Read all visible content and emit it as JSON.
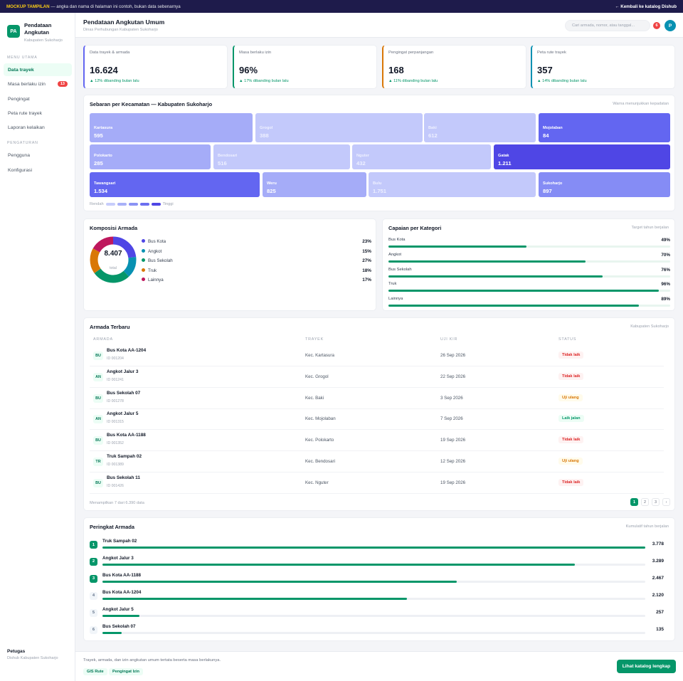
{
  "topbar": {
    "mockup_label": "MOCKUP TAMPILAN",
    "notice": "— angka dan nama di halaman ini contoh, bukan data sebenarnya",
    "back_link": "← Kembali ke katalog Dishub"
  },
  "sidebar": {
    "logo": "PA",
    "title": "Pendataan Angkutan",
    "subtitle": "Kabupaten Sukoharjo",
    "main_section": "MENU UTAMA",
    "main_items": [
      {
        "label": "Data trayek",
        "badge": ""
      },
      {
        "label": "Masa berlaku izin",
        "badge": "13"
      },
      {
        "label": "Pengingat",
        "badge": ""
      },
      {
        "label": "Peta rute trayek",
        "badge": ""
      },
      {
        "label": "Laporan kelaikan",
        "badge": ""
      }
    ],
    "settings_section": "PENGATURAN",
    "settings_items": [
      {
        "label": "Pengguna"
      },
      {
        "label": "Konfigurasi"
      }
    ],
    "officer_name": "Petugas",
    "officer_org": "Dishub Kabupaten Sukoharjo"
  },
  "header": {
    "title": "Pendataan Angkutan Umum",
    "subtitle": "Dinas Perhubungan Kabupaten Sukoharjo",
    "search_placeholder": "Cari armada, nomor, atau tanggal...",
    "notif_count": "6",
    "avatar": "P"
  },
  "kpis": [
    {
      "label": "Data trayek & armada",
      "value": "16.624",
      "delta": "▲ 12% dibanding bulan lalu",
      "color": "#6366f1"
    },
    {
      "label": "Masa berlaku izin",
      "value": "96%",
      "delta": "▲ 17% dibanding bulan lalu",
      "color": "#059669"
    },
    {
      "label": "Pengingat perpanjangan",
      "value": "168",
      "delta": "▲ 11% dibanding bulan lalu",
      "color": "#d97706"
    },
    {
      "label": "Peta rute trayek",
      "value": "357",
      "delta": "▲ 14% dibanding bulan lalu",
      "color": "#0891b2"
    }
  ],
  "heatmap": {
    "title": "Sebaran per Kecamatan — Kabupaten Sukoharjo",
    "note": "Warna menunjukkan kepadatan",
    "legend_low": "Rendah",
    "legend_high": "Tinggi",
    "legend_colors": [
      "#c7cdfb",
      "#a9b1f8",
      "#8b93f4",
      "#6c6ff0",
      "#4f46e5"
    ],
    "tiles": [
      {
        "name": "Kartasura",
        "value": "595",
        "color": "#a5acf8"
      },
      {
        "name": "Grogol",
        "value": "388",
        "color": "#c3c9fb"
      },
      {
        "name": "Baki",
        "value": "612",
        "color": "#c3c9fb"
      },
      {
        "name": "Mojolaban",
        "value": "84",
        "color": "#6366f1"
      },
      {
        "name": "Polokarto",
        "value": "285",
        "color": "#a5acf8"
      },
      {
        "name": "Bendosari",
        "value": "516",
        "color": "#c3c9fb"
      },
      {
        "name": "Nguter",
        "value": "432",
        "color": "#c3c9fb"
      },
      {
        "name": "Gatak",
        "value": "1.211",
        "color": "#4f46e5"
      },
      {
        "name": "Tawangsari",
        "value": "1.534",
        "color": "#6366f1"
      },
      {
        "name": "Weru",
        "value": "825",
        "color": "#a5acf8"
      },
      {
        "name": "Bulu",
        "value": "1.751",
        "color": "#c3c9fb"
      },
      {
        "name": "Sukoharjo",
        "value": "897",
        "color": "#858cf5"
      }
    ]
  },
  "composition": {
    "title": "Komposisi Armada",
    "total": "8.407",
    "total_label": "total",
    "items": [
      {
        "label": "Bus Kota",
        "pct": "23%",
        "value": 23,
        "color": "#4f46e5"
      },
      {
        "label": "Angkot",
        "pct": "15%",
        "value": 15,
        "color": "#0891b2"
      },
      {
        "label": "Bus Sekolah",
        "pct": "27%",
        "value": 27,
        "color": "#059669"
      },
      {
        "label": "Truk",
        "pct": "18%",
        "value": 18,
        "color": "#d97706"
      },
      {
        "label": "Lainnya",
        "pct": "17%",
        "value": 17,
        "color": "#be185d"
      }
    ]
  },
  "achievement": {
    "title": "Capaian per Kategori",
    "note": "Target tahun berjalan",
    "items": [
      {
        "label": "Bus Kota",
        "pct": "49%",
        "value": 49
      },
      {
        "label": "Angkot",
        "pct": "70%",
        "value": 70
      },
      {
        "label": "Bus Sekolah",
        "pct": "76%",
        "value": 76
      },
      {
        "label": "Truk",
        "pct": "96%",
        "value": 96
      },
      {
        "label": "Lainnya",
        "pct": "89%",
        "value": 89
      }
    ]
  },
  "table": {
    "title": "Armada Terbaru",
    "note": "Kabupaten Sukoharjo",
    "columns": [
      "ARMADA",
      "TRAYEK",
      "UJI KIR",
      "STATUS"
    ],
    "rows": [
      {
        "abbr": "BU",
        "name": "Bus Kota AA-1204",
        "id": "ID 001204",
        "route": "Kec. Kartasura",
        "date": "26 Sep 2026",
        "status": "Tidak laik",
        "tone": "red"
      },
      {
        "abbr": "AN",
        "name": "Angkot Jalur 3",
        "id": "ID 001241",
        "route": "Kec. Grogol",
        "date": "22 Sep 2026",
        "status": "Tidak laik",
        "tone": "red"
      },
      {
        "abbr": "BU",
        "name": "Bus Sekolah 07",
        "id": "ID 001278",
        "route": "Kec. Baki",
        "date": "3 Sep 2026",
        "status": "Uji ulang",
        "tone": "yel"
      },
      {
        "abbr": "AN",
        "name": "Angkot Jalur 5",
        "id": "ID 001315",
        "route": "Kec. Mojolaban",
        "date": "7 Sep 2026",
        "status": "Laik jalan",
        "tone": "grn"
      },
      {
        "abbr": "BU",
        "name": "Bus Kota AA-1188",
        "id": "ID 001352",
        "route": "Kec. Polokarto",
        "date": "19 Sep 2026",
        "status": "Tidak laik",
        "tone": "red"
      },
      {
        "abbr": "TR",
        "name": "Truk Sampah 02",
        "id": "ID 001389",
        "route": "Kec. Bendosari",
        "date": "12 Sep 2026",
        "status": "Uji ulang",
        "tone": "yel"
      },
      {
        "abbr": "BU",
        "name": "Bus Sekolah 11",
        "id": "ID 001426",
        "route": "Kec. Nguter",
        "date": "19 Sep 2026",
        "status": "Tidak laik",
        "tone": "red"
      }
    ],
    "footer": "Menampilkan 7 dari 6.390 data",
    "pages": [
      "1",
      "2",
      "3",
      "›"
    ]
  },
  "ranking": {
    "title": "Peringkat Armada",
    "note": "Kumulatif tahun berjalan",
    "max": 3778,
    "items": [
      {
        "rank": "1",
        "name": "Truk Sampah 02",
        "value": 3778,
        "display": "3.778"
      },
      {
        "rank": "2",
        "name": "Angkot Jalur 3",
        "value": 3289,
        "display": "3.289"
      },
      {
        "rank": "3",
        "name": "Bus Kota AA-1188",
        "value": 2467,
        "display": "2.467"
      },
      {
        "rank": "4",
        "name": "Bus Kota AA-1204",
        "value": 2120,
        "display": "2.120"
      },
      {
        "rank": "5",
        "name": "Angkot Jalur 5",
        "value": 257,
        "display": "257"
      },
      {
        "rank": "6",
        "name": "Bus Sekolah 07",
        "value": 135,
        "display": "135"
      }
    ]
  },
  "footer": {
    "text": "Trayek, armada, dan izin angkutan umum tertata beserta masa berlakunya.",
    "chips": [
      "GIS Rute",
      "Pengingat Izin"
    ],
    "cta": "Lihat katalog lengkap"
  }
}
